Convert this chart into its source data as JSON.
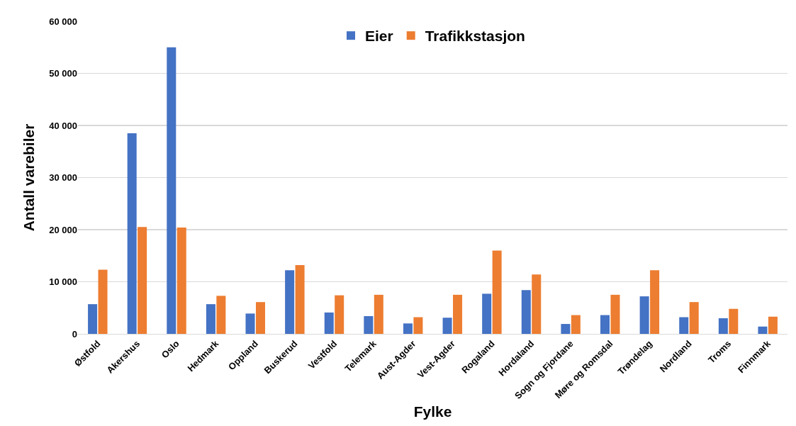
{
  "chart_data": {
    "type": "bar",
    "xlabel": "Fylke",
    "ylabel": "Antall varebiler",
    "categories": [
      "Østfold",
      "Akershus",
      "Oslo",
      "Hedmark",
      "Oppland",
      "Buskerud",
      "Vestfold",
      "Telemark",
      "Aust-Agder",
      "Vest-Agder",
      "Rogaland",
      "Hordaland",
      "Sogn og Fjordane",
      "Møre og Romsdal",
      "Trøndelag",
      "Nordland",
      "Troms",
      "Finnmark"
    ],
    "series": [
      {
        "name": "Eier",
        "color": "#4472c4",
        "values": [
          5700,
          38500,
          55000,
          5700,
          3900,
          12200,
          4100,
          3400,
          2000,
          3100,
          7700,
          8400,
          1900,
          3600,
          7200,
          3200,
          3000,
          1400
        ]
      },
      {
        "name": "Trafikkstasjon",
        "color": "#ed7d31",
        "values": [
          12300,
          20500,
          20400,
          7300,
          6100,
          13200,
          7400,
          7500,
          3200,
          7500,
          16000,
          11400,
          3600,
          7500,
          12200,
          6100,
          4800,
          3300
        ]
      }
    ],
    "ylim": [
      0,
      60000
    ],
    "yticks": [
      0,
      {
        "value": 10000,
        "label": "10 000"
      },
      {
        "value": 20000,
        "label": "20 000"
      },
      {
        "value": 30000,
        "label": "30 000"
      },
      {
        "value": 40000,
        "label": "40 000"
      },
      {
        "value": 50000,
        "label": "50 000"
      },
      {
        "value": 60000,
        "label": "60 000"
      }
    ],
    "grid": "y",
    "legend": "top"
  }
}
